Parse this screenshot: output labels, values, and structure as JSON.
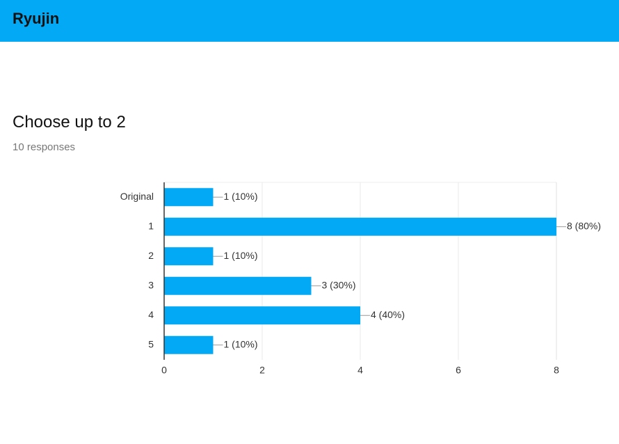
{
  "header": {
    "title": "Ryujin"
  },
  "chart_data": {
    "type": "hbar",
    "title": "Choose up to 2",
    "subtitle": "10 responses",
    "categories": [
      "Original",
      "1",
      "2",
      "3",
      "4",
      "5"
    ],
    "values": [
      1,
      8,
      1,
      3,
      4,
      1
    ],
    "value_labels": [
      "1 (10%)",
      "8 (80%)",
      "1 (10%)",
      "3 (30%)",
      "4 (40%)",
      "1 (10%)"
    ],
    "color": "#03a9f4",
    "xlim": [
      0,
      8
    ],
    "xticks": [
      0,
      2,
      4,
      6,
      8
    ],
    "grid": true
  }
}
